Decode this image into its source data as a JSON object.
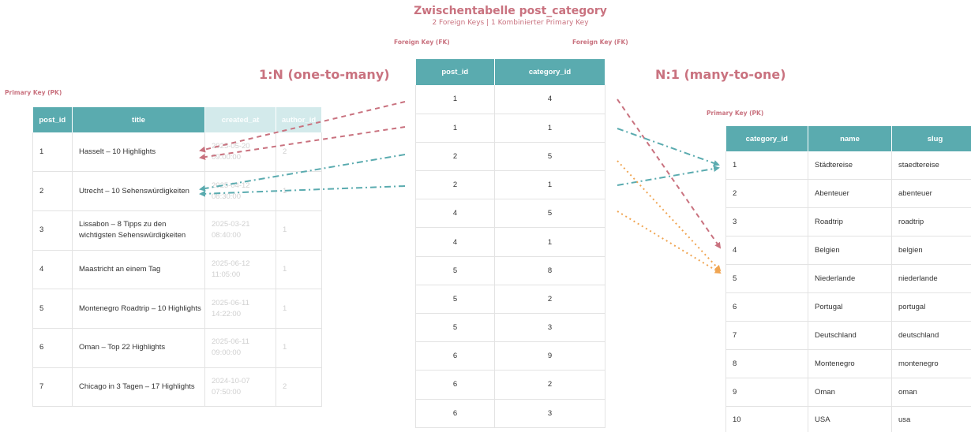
{
  "header": {
    "title": "Zwischentabelle post_category",
    "subtitle": "2 Foreign Keys | 1 Kombinierter Primary Key"
  },
  "labels": {
    "fk_left": "Foreign Key (FK)",
    "fk_right": "Foreign Key (FK)",
    "pk_posts": "Primary Key (PK)",
    "pk_categories": "Primary Key (PK)",
    "rel_left": "1:N (one-to-many)",
    "rel_right": "N:1 (many-to-one)"
  },
  "colors": {
    "header_teal": "#5aabaf",
    "accent_pink": "#c9727f",
    "arrow_orange": "#f0a552"
  },
  "posts": {
    "headers": [
      "post_id",
      "title",
      "created_at",
      "author_id"
    ],
    "rows": [
      [
        "1",
        "Hasselt – 10 Highlights",
        "2025-05-20\n09:00:00",
        "2"
      ],
      [
        "2",
        "Utrecht – 10 Sehenswürdigkeiten",
        "2025-04-12\n08:30:00",
        "1"
      ],
      [
        "3",
        "Lissabon – 8 Tipps zu den wichtigsten Sehenswürdigkeiten",
        "2025-03-21\n08:40:00",
        "1"
      ],
      [
        "4",
        "Maastricht an einem Tag",
        "2025-06-12\n11:05:00",
        "1"
      ],
      [
        "5",
        "Montenegro Roadtrip – 10 Highlights",
        "2025-06-11\n14:22:00",
        "1"
      ],
      [
        "6",
        "Oman – Top 22 Highlights",
        "2025-06-11\n09:00:00",
        "1"
      ],
      [
        "7",
        "Chicago in 3 Tagen – 17 Highlights",
        "2024-10-07\n07:50:00",
        "2"
      ]
    ]
  },
  "post_category": {
    "headers": [
      "post_id",
      "category_id"
    ],
    "rows": [
      [
        "1",
        "4"
      ],
      [
        "1",
        "1"
      ],
      [
        "2",
        "5"
      ],
      [
        "2",
        "1"
      ],
      [
        "4",
        "5"
      ],
      [
        "4",
        "1"
      ],
      [
        "5",
        "8"
      ],
      [
        "5",
        "2"
      ],
      [
        "5",
        "3"
      ],
      [
        "6",
        "9"
      ],
      [
        "6",
        "2"
      ],
      [
        "6",
        "3"
      ]
    ]
  },
  "categories": {
    "headers": [
      "category_id",
      "name",
      "slug"
    ],
    "rows": [
      [
        "1",
        "Städtereise",
        "staedtereise"
      ],
      [
        "2",
        "Abenteuer",
        "abenteuer"
      ],
      [
        "3",
        "Roadtrip",
        "roadtrip"
      ],
      [
        "4",
        "Belgien",
        "belgien"
      ],
      [
        "5",
        "Niederlande",
        "niederlande"
      ],
      [
        "6",
        "Portugal",
        "portugal"
      ],
      [
        "7",
        "Deutschland",
        "deutschland"
      ],
      [
        "8",
        "Montenegro",
        "montenegro"
      ],
      [
        "9",
        "Oman",
        "oman"
      ],
      [
        "10",
        "USA",
        "usa"
      ]
    ]
  }
}
